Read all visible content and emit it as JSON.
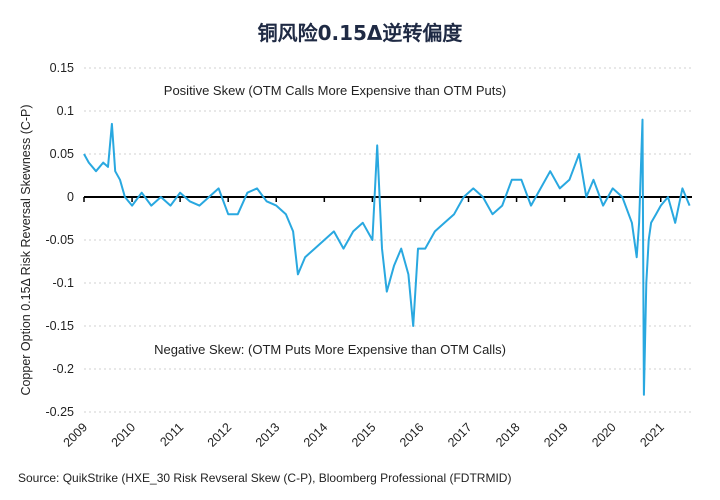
{
  "chart_data": {
    "type": "line",
    "title": "铜风险0.15Δ逆转偏度",
    "xlabel": "",
    "ylabel": "Copper Option 0.15Δ Risk Reversal Skewness  (C-P)",
    "source": "Source: QuikStrike (HXE_30 Risk Revseral Skew (C-P), Bloomberg Professional (FDTRMID)",
    "annotations": {
      "positive": "Positive Skew (OTM Calls More Expensive than OTM Puts)",
      "negative": "Negative Skew: (OTM Puts More Expensive than OTM Calls)"
    },
    "ylim": [
      -0.25,
      0.15
    ],
    "y_ticks": [
      0.15,
      0.1,
      0.05,
      0,
      -0.05,
      -0.1,
      -0.15,
      -0.2,
      -0.25
    ],
    "y_tick_labels": [
      "0.15",
      "0.1",
      "0.05",
      "0",
      "-0.05",
      "-0.1",
      "-0.15",
      "-0.2",
      "-0.25"
    ],
    "x_tick_labels": [
      "2009",
      "2010",
      "2011",
      "2012",
      "2013",
      "2014",
      "2015",
      "2016",
      "2017",
      "2018",
      "2019",
      "2020",
      "2021"
    ],
    "xlim": [
      2009.0,
      2021.65
    ],
    "grid": true,
    "line_color": "#29a8e0",
    "zero_line_color": "#000000",
    "series": [
      {
        "x": [
          2009.0,
          2009.1,
          2009.25,
          2009.4,
          2009.5,
          2009.58,
          2009.65,
          2009.75,
          2009.85,
          2010.0,
          2010.2,
          2010.4,
          2010.6,
          2010.8,
          2011.0,
          2011.2,
          2011.4,
          2011.6,
          2011.8,
          2012.0,
          2012.2,
          2012.4,
          2012.6,
          2012.8,
          2013.0,
          2013.2,
          2013.35,
          2013.45,
          2013.6,
          2013.8,
          2014.0,
          2014.2,
          2014.4,
          2014.6,
          2014.8,
          2015.0,
          2015.1,
          2015.2,
          2015.3,
          2015.45,
          2015.6,
          2015.75,
          2015.85,
          2015.95,
          2016.1,
          2016.3,
          2016.5,
          2016.7,
          2016.9,
          2017.1,
          2017.3,
          2017.5,
          2017.7,
          2017.9,
          2018.1,
          2018.3,
          2018.5,
          2018.7,
          2018.9,
          2019.1,
          2019.3,
          2019.45,
          2019.6,
          2019.8,
          2020.0,
          2020.2,
          2020.4,
          2020.5,
          2020.55,
          2020.62,
          2020.65,
          2020.7,
          2020.75,
          2020.8,
          2020.9,
          2021.0,
          2021.15,
          2021.3,
          2021.45,
          2021.6
        ],
        "values": [
          0.05,
          0.04,
          0.03,
          0.04,
          0.035,
          0.085,
          0.03,
          0.02,
          0.0,
          -0.01,
          0.005,
          -0.01,
          0.0,
          -0.01,
          0.005,
          -0.005,
          -0.01,
          0.0,
          0.01,
          -0.02,
          -0.02,
          0.005,
          0.01,
          -0.005,
          -0.01,
          -0.02,
          -0.04,
          -0.09,
          -0.07,
          -0.06,
          -0.05,
          -0.04,
          -0.06,
          -0.04,
          -0.03,
          -0.05,
          0.06,
          -0.06,
          -0.11,
          -0.08,
          -0.06,
          -0.09,
          -0.15,
          -0.06,
          -0.06,
          -0.04,
          -0.03,
          -0.02,
          0.0,
          0.01,
          0.0,
          -0.02,
          -0.01,
          0.02,
          0.02,
          -0.01,
          0.01,
          0.03,
          0.01,
          0.02,
          0.05,
          0.0,
          0.02,
          -0.01,
          0.01,
          0.0,
          -0.03,
          -0.07,
          -0.03,
          0.09,
          -0.23,
          -0.1,
          -0.05,
          -0.03,
          -0.02,
          -0.01,
          0.0,
          -0.03,
          0.01,
          -0.01
        ]
      }
    ]
  }
}
